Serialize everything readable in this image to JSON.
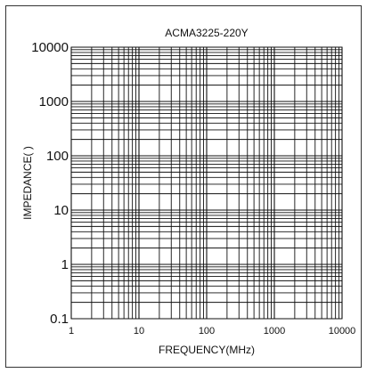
{
  "chart_data": {
    "type": "line",
    "title": "ACMA3225-220Y",
    "xlabel": "FREQUENCY(MHz)",
    "ylabel": "IMPEDANCE(  )",
    "xscale": "log",
    "yscale": "log",
    "xlim": [
      1,
      10000
    ],
    "ylim": [
      0.1,
      10000
    ],
    "x_ticks": [
      1,
      10,
      100,
      1000,
      10000
    ],
    "x_tick_labels": [
      "1",
      "10",
      "100",
      "1000",
      "10000"
    ],
    "y_ticks": [
      0.1,
      1,
      10,
      100,
      1000,
      10000
    ],
    "y_tick_labels": [
      "0.1",
      "1",
      "10",
      "100",
      "1000",
      "10000"
    ],
    "grid": true,
    "series": [],
    "colors": {
      "axis": "#111111",
      "grid": "#111111",
      "frame": "#333333",
      "background": "#ffffff"
    }
  }
}
